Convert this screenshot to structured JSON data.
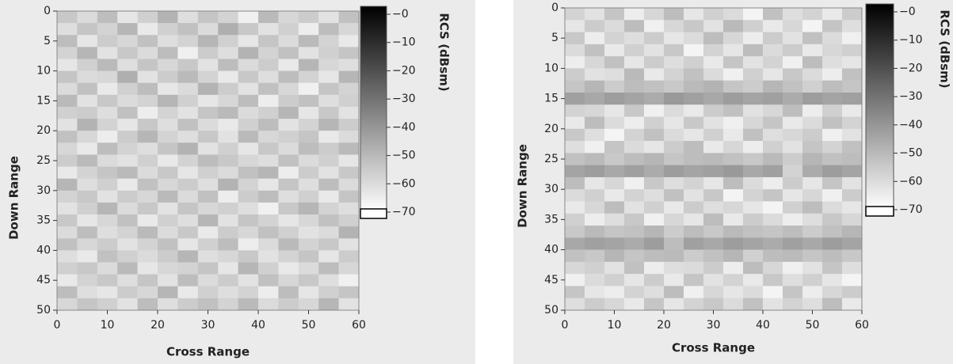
{
  "chart_data": [
    {
      "type": "heatmap",
      "xlabel": "Cross Range",
      "ylabel": "Down Range",
      "colorbar_label": "RCS (dBsm)",
      "xlim": [
        0,
        60
      ],
      "ylim": [
        50,
        0
      ],
      "xticks": [
        0,
        10,
        20,
        30,
        40,
        50,
        60
      ],
      "yticks": [
        0,
        5,
        10,
        15,
        20,
        25,
        30,
        35,
        40,
        45,
        50
      ],
      "zlim": [
        -70,
        0
      ],
      "colormap": [
        "#ffffff",
        "#000000"
      ],
      "zticks": [
        {
          "value": 0,
          "label": "−0"
        },
        {
          "value": -10,
          "label": "−10"
        },
        {
          "value": -20,
          "label": "−20"
        },
        {
          "value": -30,
          "label": "−30"
        },
        {
          "value": -40,
          "label": "−40"
        },
        {
          "value": -50,
          "label": "−50"
        },
        {
          "value": -60,
          "label": "−60"
        },
        {
          "value": -70,
          "label": "−70"
        }
      ],
      "z": [
        [
          -55,
          -60,
          -52,
          -63,
          -57,
          -49,
          -61,
          -54,
          -58,
          -66,
          -51,
          -59,
          -56,
          -62,
          -53
        ],
        [
          -61,
          -54,
          -58,
          -50,
          -64,
          -57,
          -53,
          -60,
          -48,
          -55,
          -62,
          -57,
          -65,
          -52,
          -59
        ],
        [
          -52,
          -63,
          -56,
          -59,
          -53,
          -61,
          -58,
          -50,
          -57,
          -63,
          -54,
          -60,
          -51,
          -58,
          -64
        ],
        [
          -58,
          -50,
          -62,
          -55,
          -60,
          -52,
          -66,
          -56,
          -61,
          -49,
          -58,
          -53,
          -62,
          -57,
          -54
        ],
        [
          -63,
          -57,
          -51,
          -61,
          -54,
          -59,
          -55,
          -62,
          -52,
          -60,
          -56,
          -64,
          -50,
          -59,
          -61
        ],
        [
          -54,
          -60,
          -59,
          -48,
          -62,
          -56,
          -51,
          -58,
          -64,
          -55,
          -61,
          -52,
          -58,
          -63,
          -50
        ],
        [
          -60,
          -53,
          -64,
          -57,
          -52,
          -63,
          -60,
          -49,
          -56,
          -62,
          -53,
          -59,
          -66,
          -54,
          -58
        ],
        [
          -51,
          -62,
          -55,
          -60,
          -58,
          -50,
          -57,
          -63,
          -59,
          -52,
          -65,
          -56,
          -53,
          -61,
          -57
        ],
        [
          -57,
          -56,
          -61,
          -53,
          -65,
          -58,
          -62,
          -54,
          -51,
          -60,
          -57,
          -50,
          -63,
          -55,
          -62
        ],
        [
          -62,
          -49,
          -58,
          -63,
          -55,
          -61,
          -53,
          -60,
          -64,
          -57,
          -52,
          -62,
          -58,
          -50,
          -56
        ],
        [
          -53,
          -59,
          -65,
          -56,
          -50,
          -58,
          -61,
          -55,
          -62,
          -51,
          -59,
          -57,
          -54,
          -64,
          -60
        ],
        [
          -59,
          -64,
          -52,
          -58,
          -61,
          -54,
          -49,
          -62,
          -57,
          -63,
          -55,
          -60,
          -52,
          -56,
          -51
        ],
        [
          -56,
          -51,
          -60,
          -62,
          -57,
          -64,
          -58,
          -52,
          -55,
          -59,
          -61,
          -53,
          -60,
          -57,
          -63
        ],
        [
          -64,
          -58,
          -54,
          -51,
          -60,
          -55,
          -63,
          -57,
          -60,
          -53,
          -50,
          -65,
          -56,
          -62,
          -55
        ],
        [
          -50,
          -61,
          -57,
          -64,
          -53,
          -59,
          -56,
          -61,
          -49,
          -58,
          -63,
          -54,
          -61,
          -52,
          -60
        ],
        [
          -58,
          -55,
          -62,
          -56,
          -59,
          -51,
          -60,
          -53,
          -65,
          -56,
          -52,
          -61,
          -57,
          -64,
          -54
        ],
        [
          -62,
          -57,
          -50,
          -60,
          -55,
          -62,
          -54,
          -59,
          -57,
          -61,
          -66,
          -55,
          -50,
          -58,
          -61
        ],
        [
          -55,
          -63,
          -59,
          -53,
          -64,
          -57,
          -61,
          -50,
          -62,
          -54,
          -58,
          -63,
          -59,
          -53,
          -57
        ],
        [
          -60,
          -52,
          -61,
          -58,
          -51,
          -60,
          -55,
          -64,
          -56,
          -59,
          -53,
          -57,
          -62,
          -60,
          -49
        ],
        [
          -53,
          -59,
          -56,
          -62,
          -58,
          -53,
          -63,
          -57,
          -52,
          -65,
          -60,
          -51,
          -58,
          -55,
          -62
        ],
        [
          -61,
          -64,
          -53,
          -57,
          -60,
          -56,
          -50,
          -61,
          -59,
          -55,
          -62,
          -58,
          -54,
          -63,
          -56
        ],
        [
          -57,
          -55,
          -60,
          -51,
          -63,
          -59,
          -58,
          -54,
          -63,
          -50,
          -57,
          -64,
          -60,
          -52,
          -59
        ],
        [
          -64,
          -58,
          -55,
          -61,
          -54,
          -62,
          -52,
          -60,
          -56,
          -62,
          -53,
          -59,
          -55,
          -61,
          -66
        ],
        [
          -52,
          -61,
          -63,
          -56,
          -59,
          -50,
          -64,
          -57,
          -61,
          -58,
          -65,
          -52,
          -63,
          -57,
          -54
        ],
        [
          -59,
          -54,
          -57,
          -62,
          -52,
          -61,
          -56,
          -53,
          -58,
          -51,
          -60,
          -56,
          -59,
          -50,
          -62
        ]
      ]
    },
    {
      "type": "heatmap",
      "xlabel": "Cross Range",
      "ylabel": "Down Range",
      "colorbar_label": "RCS (dBsm)",
      "xlim": [
        0,
        60
      ],
      "ylim": [
        50,
        0
      ],
      "xticks": [
        0,
        10,
        20,
        30,
        40,
        50,
        60
      ],
      "yticks": [
        0,
        5,
        10,
        15,
        20,
        25,
        30,
        35,
        40,
        45,
        50
      ],
      "zlim": [
        -70,
        0
      ],
      "colormap": [
        "#ffffff",
        "#000000"
      ],
      "zticks": [
        {
          "value": 0,
          "label": "−0"
        },
        {
          "value": -10,
          "label": "−10"
        },
        {
          "value": -20,
          "label": "−20"
        },
        {
          "value": -30,
          "label": "−30"
        },
        {
          "value": -40,
          "label": "−40"
        },
        {
          "value": -50,
          "label": "−50"
        },
        {
          "value": -60,
          "label": "−60"
        },
        {
          "value": -70,
          "label": "−70"
        }
      ],
      "z": [
        [
          -58,
          -62,
          -54,
          -65,
          -59,
          -52,
          -63,
          -57,
          -60,
          -67,
          -53,
          -61,
          -58,
          -64,
          -56
        ],
        [
          -63,
          -56,
          -60,
          -52,
          -66,
          -59,
          -55,
          -62,
          -51,
          -57,
          -64,
          -59,
          -67,
          -54,
          -61
        ],
        [
          -55,
          -65,
          -58,
          -61,
          -56,
          -63,
          -60,
          -52,
          -59,
          -65,
          -56,
          -62,
          -53,
          -60,
          -66
        ],
        [
          -60,
          -53,
          -64,
          -57,
          -62,
          -55,
          -67,
          -58,
          -63,
          -52,
          -60,
          -56,
          -64,
          -59,
          -57
        ],
        [
          -65,
          -59,
          -53,
          -63,
          -56,
          -61,
          -57,
          -64,
          -54,
          -62,
          -58,
          -66,
          -52,
          -61,
          -63
        ],
        [
          -56,
          -62,
          -61,
          -51,
          -64,
          -58,
          -53,
          -60,
          -66,
          -57,
          -63,
          -55,
          -60,
          -65,
          -53
        ],
        [
          -54,
          -50,
          -56,
          -52,
          -53,
          -55,
          -51,
          -49,
          -54,
          -56,
          -50,
          -53,
          -57,
          -52,
          -54
        ],
        [
          -44,
          -46,
          -43,
          -45,
          -47,
          -42,
          -44,
          -46,
          -43,
          -45,
          -44,
          -47,
          -43,
          -45,
          -44
        ],
        [
          -58,
          -59,
          -63,
          -55,
          -66,
          -60,
          -64,
          -56,
          -53,
          -62,
          -59,
          -52,
          -65,
          -57,
          -64
        ],
        [
          -64,
          -52,
          -60,
          -65,
          -57,
          -63,
          -55,
          -62,
          -66,
          -59,
          -54,
          -64,
          -60,
          -53,
          -58
        ],
        [
          -55,
          -61,
          -67,
          -58,
          -53,
          -60,
          -63,
          -57,
          -64,
          -53,
          -61,
          -59,
          -56,
          -66,
          -62
        ],
        [
          -61,
          -66,
          -54,
          -60,
          -63,
          -56,
          -52,
          -64,
          -59,
          -65,
          -57,
          -62,
          -54,
          -58,
          -53
        ],
        [
          -53,
          -51,
          -55,
          -52,
          -50,
          -54,
          -52,
          -51,
          -53,
          -55,
          -51,
          -56,
          -50,
          -53,
          -52
        ],
        [
          -45,
          -43,
          -46,
          -44,
          -47,
          -43,
          -45,
          -44,
          -42,
          -46,
          -44,
          -58,
          -47,
          -43,
          -45
        ],
        [
          -52,
          -63,
          -59,
          -66,
          -55,
          -61,
          -58,
          -63,
          -52,
          -60,
          -65,
          -56,
          -63,
          -54,
          -62
        ],
        [
          -60,
          -57,
          -64,
          -58,
          -61,
          -53,
          -62,
          -55,
          -67,
          -58,
          -54,
          -63,
          -59,
          -66,
          -56
        ],
        [
          -64,
          -59,
          -52,
          -62,
          -57,
          -64,
          -56,
          -61,
          -59,
          -63,
          -67,
          -57,
          -52,
          -60,
          -63
        ],
        [
          -57,
          -65,
          -61,
          -55,
          -66,
          -59,
          -63,
          -52,
          -64,
          -56,
          -60,
          -65,
          -61,
          -55,
          -59
        ],
        [
          -55,
          -51,
          -54,
          -53,
          -50,
          -56,
          -52,
          -55,
          -51,
          -53,
          -54,
          -52,
          -56,
          -53,
          -50
        ],
        [
          -46,
          -44,
          -45,
          -47,
          -43,
          -52,
          -44,
          -46,
          -43,
          -45,
          -47,
          -44,
          -46,
          -43,
          -45
        ],
        [
          -53,
          -55,
          -50,
          -54,
          -52,
          -51,
          -56,
          -53,
          -50,
          -57,
          -52,
          -51,
          -54,
          -52,
          -55
        ],
        [
          -59,
          -57,
          -62,
          -53,
          -65,
          -61,
          -60,
          -56,
          -65,
          -52,
          -59,
          -66,
          -62,
          -54,
          -61
        ],
        [
          -66,
          -60,
          -57,
          -63,
          -56,
          -64,
          -54,
          -62,
          -58,
          -64,
          -55,
          -61,
          -57,
          -63,
          -67
        ],
        [
          -54,
          -63,
          -65,
          -58,
          -61,
          -52,
          -66,
          -59,
          -63,
          -60,
          -67,
          -54,
          -65,
          -59,
          -56
        ],
        [
          -61,
          -56,
          -59,
          -64,
          -54,
          -63,
          -58,
          -55,
          -60,
          -53,
          -62,
          -58,
          -61,
          -52,
          -64
        ]
      ]
    }
  ]
}
